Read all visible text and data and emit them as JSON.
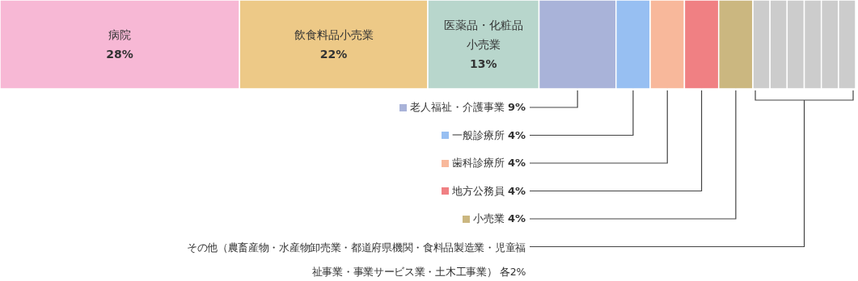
{
  "chart_data": {
    "type": "bar",
    "orientation": "horizontal",
    "stacked": true,
    "categories": [
      null
    ],
    "series": [
      {
        "name": "病院",
        "color": "#f7b8d5",
        "values": [
          28
        ],
        "value_labels": [
          "28%"
        ]
      },
      {
        "name": "飲食料品小売業",
        "color": "#edc987",
        "values": [
          22
        ],
        "value_labels": [
          "22%"
        ]
      },
      {
        "name": "医薬品・化粧品小売業",
        "color": "#b8d6cc",
        "values": [
          13
        ],
        "value_labels": [
          "13%"
        ]
      },
      {
        "name": "老人福祉・介護事業",
        "color": "#a9b3d9",
        "values": [
          9
        ],
        "value_labels": [
          "9%"
        ]
      },
      {
        "name": "一般診療所",
        "color": "#97bff2",
        "values": [
          4
        ],
        "value_labels": [
          "4%"
        ]
      },
      {
        "name": "歯科診療所",
        "color": "#f8b89b",
        "values": [
          4
        ],
        "value_labels": [
          "4%"
        ]
      },
      {
        "name": "地方公務員",
        "color": "#f08083",
        "values": [
          4
        ],
        "value_labels": [
          "4%"
        ]
      },
      {
        "name": "小売業",
        "color": "#cbb780",
        "values": [
          4
        ],
        "value_labels": [
          "4%"
        ]
      },
      {
        "color": "#cccccc",
        "values": [
          2
        ]
      },
      {
        "color": "#cccccc",
        "values": [
          2
        ]
      },
      {
        "color": "#cccccc",
        "values": [
          2
        ]
      },
      {
        "color": "#cccccc",
        "values": [
          2
        ]
      },
      {
        "color": "#cccccc",
        "values": [
          2
        ]
      },
      {
        "color": "#cccccc",
        "values": [
          2
        ]
      }
    ],
    "legend": "bottom",
    "annotations": [
      "その他（農畜産物・水産物卸売業・都道府県機関・食料品製造業・児童福祉事業・事業サービス業・土木工事業） 各2%"
    ]
  }
}
